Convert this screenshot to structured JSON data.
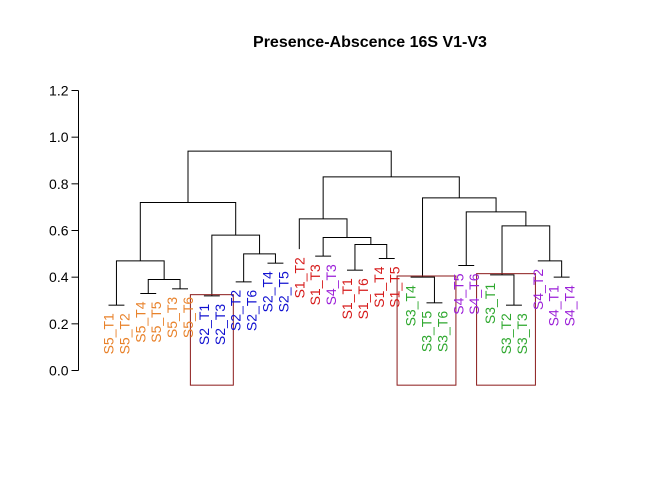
{
  "chart_data": {
    "type": "dendrogram",
    "title": "Presence-Abscence  16S V1-V3",
    "xlabel": "",
    "ylabel": "",
    "ylim": [
      0,
      1.2
    ],
    "yticks": [
      "0.0",
      "0.2",
      "0.4",
      "0.6",
      "0.8",
      "1.0",
      "1.2"
    ],
    "ytick_values": [
      0,
      0.2,
      0.4,
      0.6,
      0.8,
      1.0,
      1.2
    ],
    "grid": false,
    "group_colors": {
      "S5": "#e8822b",
      "S2": "#1010d0",
      "S1": "#d61a1a",
      "S4": "#9b1fd8",
      "S3": "#2fa82f"
    },
    "leaves": [
      {
        "label": "S5_T1",
        "group": "S5"
      },
      {
        "label": "S5_T2",
        "group": "S5"
      },
      {
        "label": "S5_T4",
        "group": "S5"
      },
      {
        "label": "S5_T5",
        "group": "S5"
      },
      {
        "label": "S5_T3",
        "group": "S5"
      },
      {
        "label": "S5_T6",
        "group": "S5"
      },
      {
        "label": "S2_T1",
        "group": "S2"
      },
      {
        "label": "S2_T3",
        "group": "S2"
      },
      {
        "label": "S2_T2",
        "group": "S2"
      },
      {
        "label": "S2_T6",
        "group": "S2"
      },
      {
        "label": "S2_T4",
        "group": "S2"
      },
      {
        "label": "S2_T5",
        "group": "S2"
      },
      {
        "label": "S1_T2",
        "group": "S1"
      },
      {
        "label": "S1_T3",
        "group": "S1"
      },
      {
        "label": "S4_T3",
        "group": "S4"
      },
      {
        "label": "S1_T1",
        "group": "S1"
      },
      {
        "label": "S1_T6",
        "group": "S1"
      },
      {
        "label": "S1_T4",
        "group": "S1"
      },
      {
        "label": "S1_T5",
        "group": "S1"
      },
      {
        "label": "S3_T4",
        "group": "S3"
      },
      {
        "label": "S3_T5",
        "group": "S3"
      },
      {
        "label": "S3_T6",
        "group": "S3"
      },
      {
        "label": "S4_T5",
        "group": "S4"
      },
      {
        "label": "S4_T6",
        "group": "S4"
      },
      {
        "label": "S3_T1",
        "group": "S3"
      },
      {
        "label": "S3_T2",
        "group": "S3"
      },
      {
        "label": "S3_T3",
        "group": "S3"
      },
      {
        "label": "S4_T2",
        "group": "S4"
      },
      {
        "label": "S4_T1",
        "group": "S4"
      },
      {
        "label": "S4_T4",
        "group": "S4"
      }
    ],
    "leaf_heights": [
      0.28,
      0.28,
      0.33,
      0.33,
      0.35,
      0.35,
      0.32,
      0.32,
      0.38,
      0.38,
      0.46,
      0.46,
      0.52,
      0.49,
      0.49,
      0.43,
      0.43,
      0.48,
      0.48,
      0.4,
      0.29,
      0.29,
      0.45,
      0.45,
      0.41,
      0.28,
      0.28,
      0.47,
      0.4,
      0.4
    ],
    "merges": [
      {
        "left": "L0",
        "right": "L1",
        "height": 0.28
      },
      {
        "left": "L2",
        "right": "L3",
        "height": 0.33
      },
      {
        "left": "L4",
        "right": "L5",
        "height": 0.35
      },
      {
        "left": "N1",
        "right": "N2",
        "height": 0.39
      },
      {
        "left": "N0",
        "right": "N3",
        "height": 0.47
      },
      {
        "left": "L6",
        "right": "L7",
        "height": 0.32
      },
      {
        "left": "L8",
        "right": "L9",
        "height": 0.38
      },
      {
        "left": "L10",
        "right": "L11",
        "height": 0.46
      },
      {
        "left": "N6",
        "right": "N7",
        "height": 0.5
      },
      {
        "left": "N5",
        "right": "N8",
        "height": 0.58
      },
      {
        "left": "N4",
        "right": "N9",
        "height": 0.72
      },
      {
        "left": "L13",
        "right": "L14",
        "height": 0.49
      },
      {
        "left": "L15",
        "right": "L16",
        "height": 0.43
      },
      {
        "left": "L17",
        "right": "L18",
        "height": 0.48
      },
      {
        "left": "N12",
        "right": "N13",
        "height": 0.54
      },
      {
        "left": "N11",
        "right": "N14",
        "height": 0.57
      },
      {
        "left": "L12",
        "right": "N15",
        "height": 0.65
      },
      {
        "left": "L20",
        "right": "L21",
        "height": 0.29
      },
      {
        "left": "L19",
        "right": "N17",
        "height": 0.4
      },
      {
        "left": "L22",
        "right": "L23",
        "height": 0.45
      },
      {
        "left": "L25",
        "right": "L26",
        "height": 0.28
      },
      {
        "left": "L24",
        "right": "N20",
        "height": 0.41
      },
      {
        "left": "L28",
        "right": "L29",
        "height": 0.4
      },
      {
        "left": "L27",
        "right": "N22",
        "height": 0.47
      },
      {
        "left": "N21",
        "right": "N23",
        "height": 0.62
      },
      {
        "left": "N19",
        "right": "N24",
        "height": 0.68
      },
      {
        "left": "N18",
        "right": "N25",
        "height": 0.74
      },
      {
        "left": "N16",
        "right": "N26",
        "height": 0.83
      },
      {
        "left": "N10",
        "right": "N27",
        "height": 0.94
      }
    ],
    "highlight_boxes": [
      {
        "first_leaf": 6,
        "last_leaf": 7,
        "top": 0.325,
        "bottom": -0.02
      },
      {
        "first_leaf": 19,
        "last_leaf": 21,
        "top": 0.405,
        "bottom": -0.02
      },
      {
        "first_leaf": 24,
        "last_leaf": 26,
        "top": 0.415,
        "bottom": -0.02
      }
    ]
  }
}
